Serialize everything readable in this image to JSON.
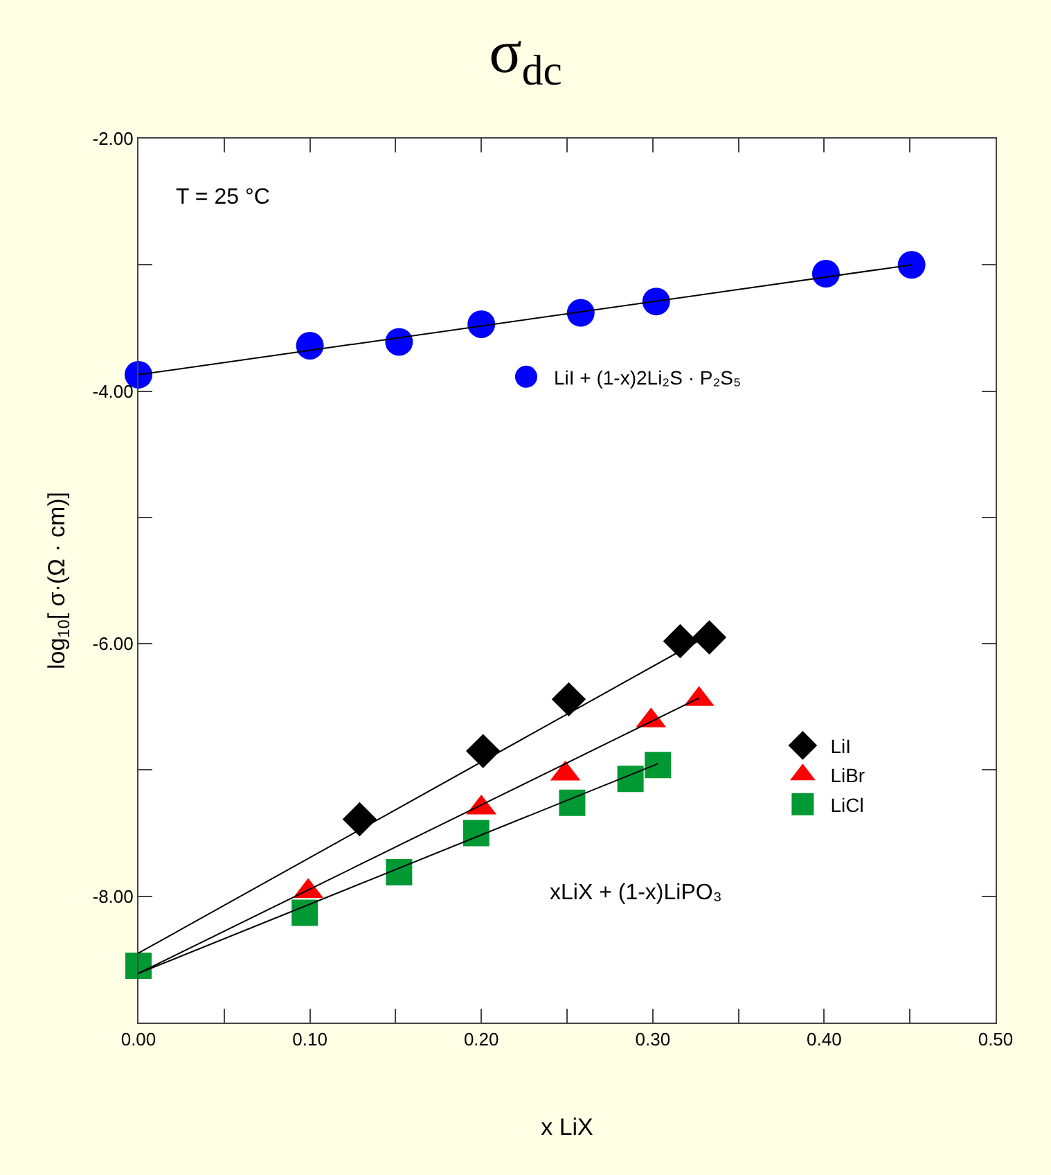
{
  "chart_data": {
    "type": "scatter",
    "title": "σ$_{dc}$",
    "xlabel": "x LiX",
    "ylabel": "log$_{10}$[ σ·(Ω · cm)]",
    "annotations": [
      "T = 25 °C",
      "xLiX + (1-x)LiPO₃"
    ],
    "xlim": [
      0,
      0.5
    ],
    "xticks": [
      {
        "value": 0,
        "label": "0.00"
      },
      {
        "value": 0.05,
        "label": null
      },
      {
        "value": 0.1,
        "label": "0.10"
      },
      {
        "value": 0.15,
        "label": null
      },
      {
        "value": 0.2,
        "label": "0.20"
      },
      {
        "value": 0.25,
        "label": null
      },
      {
        "value": 0.3,
        "label": "0.30"
      },
      {
        "value": 0.35,
        "label": null
      },
      {
        "value": 0.4,
        "label": "0.40"
      },
      {
        "value": 0.45,
        "label": null
      },
      {
        "value": 0.5,
        "label": "0.50"
      }
    ],
    "ylim": [
      -9,
      -2
    ],
    "yticks": [
      {
        "value": -2,
        "label": "-2.00"
      },
      {
        "value": -3,
        "label": null
      },
      {
        "value": -4,
        "label": "-4.00"
      },
      {
        "value": -5,
        "label": null
      },
      {
        "value": -6,
        "label": "-6.00"
      },
      {
        "value": -7,
        "label": null
      },
      {
        "value": -8,
        "label": "-8.00"
      },
      {
        "value": -9,
        "label": null
      }
    ],
    "legend": "right",
    "series": [
      {
        "name": "LiI + (1-x)2Li₂S · P₂S₅",
        "color": "#0000ff",
        "marker": "circle",
        "x": [
          0,
          0.1,
          0.152,
          0.2,
          0.258,
          0.302,
          0.401,
          0.451
        ],
        "values": [
          -3.87,
          -3.64,
          -3.61,
          -3.47,
          -3.38,
          -3.29,
          -3.07,
          -3.0
        ]
      },
      {
        "name": "LiI",
        "color": "#000000",
        "marker": "diamond",
        "x": [
          0.129,
          0.201,
          0.251,
          0.316,
          0.333
        ],
        "values": [
          -7.39,
          -6.85,
          -6.44,
          -5.98,
          -5.95
        ]
      },
      {
        "name": "LiBr",
        "color": "#ff0000",
        "marker": "triangle",
        "x": [
          0.099,
          0.2,
          0.249,
          0.299,
          0.327
        ],
        "values": [
          -7.96,
          -7.3,
          -7.03,
          -6.61,
          -6.44
        ]
      },
      {
        "name": "LiCl",
        "color": "#009933",
        "marker": "square",
        "x": [
          0,
          0.097,
          0.152,
          0.197,
          0.253,
          0.287,
          0.303
        ],
        "values": [
          -8.55,
          -8.13,
          -7.81,
          -7.5,
          -7.26,
          -7.07,
          -6.96
        ]
      },
      {
        "type": "line",
        "color": "#000000",
        "marker": "none",
        "x": [
          0,
          0.451
        ],
        "values": [
          -3.87,
          -3.0
        ]
      },
      {
        "type": "line",
        "color": "#000000",
        "marker": "none",
        "x": [
          0,
          0.333
        ],
        "values": [
          -8.45,
          -5.93
        ]
      },
      {
        "type": "line",
        "color": "#000000",
        "marker": "none",
        "x": [
          0,
          0.327
        ],
        "values": [
          -8.61,
          -6.43
        ]
      },
      {
        "type": "line",
        "color": "#000000",
        "marker": "none",
        "x": [
          0,
          0.303
        ],
        "values": [
          -8.61,
          -6.95
        ]
      }
    ]
  }
}
